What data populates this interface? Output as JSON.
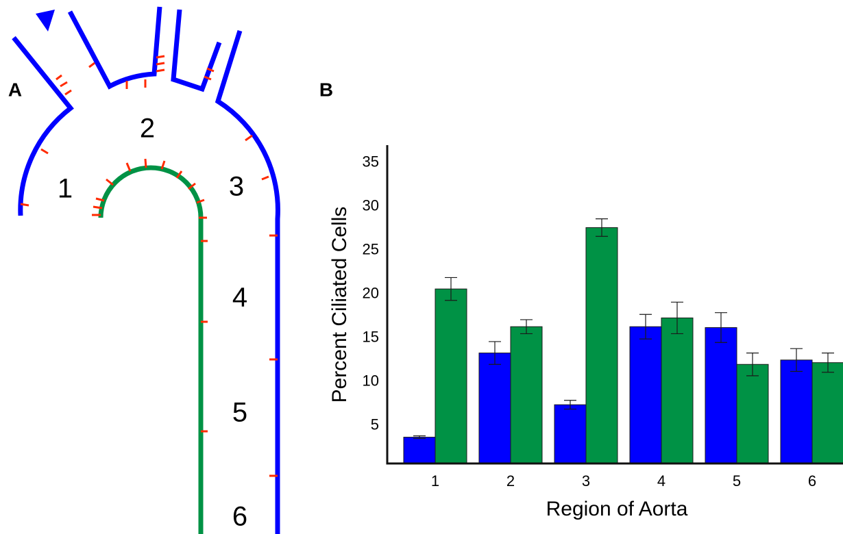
{
  "panel_labels": [
    "A",
    "B"
  ],
  "diagram": {
    "region_labels": [
      "1",
      "2",
      "3",
      "4",
      "5",
      "6"
    ]
  },
  "chart_data": {
    "type": "bar",
    "ylabel": "Percent Ciliated Cells",
    "xlabel": "Region of Aorta",
    "categories": [
      "1",
      "2",
      "3",
      "4",
      "5",
      "6"
    ],
    "series": [
      {
        "color": "#0000ff",
        "values": [
          3.7,
          13.3,
          7.4,
          16.3,
          16.2,
          12.5
        ],
        "errors": [
          0.15,
          1.3,
          0.5,
          1.4,
          1.7,
          1.3
        ]
      },
      {
        "color": "#009245",
        "values": [
          20.6,
          16.3,
          27.6,
          17.3,
          12.0,
          12.2
        ],
        "errors": [
          1.3,
          0.8,
          1.0,
          1.8,
          1.3,
          1.1
        ]
      }
    ],
    "ylim": [
      0.7,
      37
    ],
    "yticks": [
      5,
      10,
      15,
      20,
      25,
      30,
      35
    ]
  }
}
